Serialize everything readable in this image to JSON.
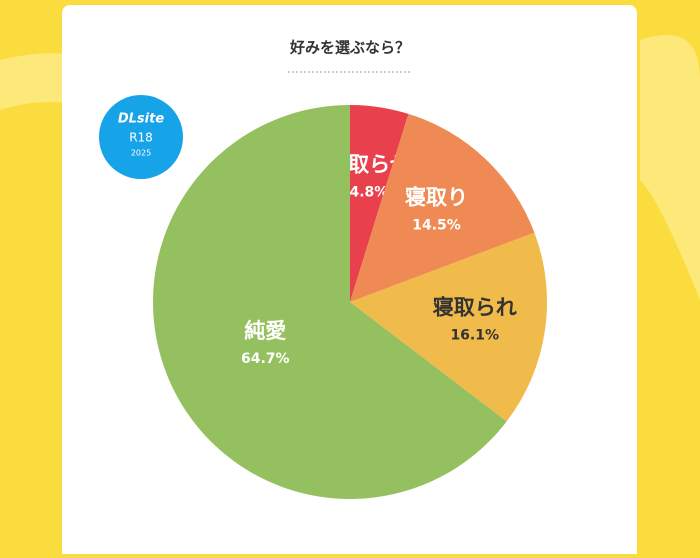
{
  "badge": {
    "brand": "DLsite",
    "rating": "R18",
    "year": "2025"
  },
  "chart_data": {
    "type": "pie",
    "title": "好みを選ぶなら？",
    "categories": [
      "寝取らせ",
      "寝取り",
      "寝取られ",
      "純愛"
    ],
    "values": [
      4.8,
      14.5,
      16.1,
      64.7
    ],
    "value_labels": [
      "4.8%",
      "14.5%",
      "16.1%",
      "64.7%"
    ],
    "colors": [
      "#e8404c",
      "#ef8a55",
      "#f1bb4b",
      "#95c05f"
    ],
    "label_colors": [
      "#ffffff",
      "#ffffff",
      "#333333",
      "#ffffff"
    ]
  }
}
